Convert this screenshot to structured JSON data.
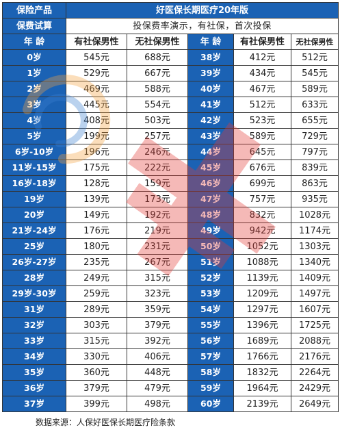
{
  "header": {
    "label_product": "保险产品",
    "product_name": "好医保长期医疗20年版",
    "label_trial": "保费试算",
    "trial_note": "投保费率演示，有社保，首次投保"
  },
  "columns": {
    "age": "年  龄",
    "with_ss_male": "有社保男性",
    "without_ss_male": "无社保男性",
    "age_right": "年  龄",
    "with_ss_male_right": "有社保男性",
    "without_ss_male_right": "无社保男性"
  },
  "rows": [
    {
      "age_left": "0岁",
      "with_left": "545元",
      "without_left": "688元",
      "age_right": "38岁",
      "with_right": "412元",
      "without_right": "512元"
    },
    {
      "age_left": "1岁",
      "with_left": "529元",
      "without_left": "667元",
      "age_right": "39岁",
      "with_right": "434元",
      "without_right": "545元"
    },
    {
      "age_left": "2岁",
      "with_left": "469元",
      "without_left": "588元",
      "age_right": "40岁",
      "with_right": "467元",
      "without_right": "589元"
    },
    {
      "age_left": "3岁",
      "with_left": "445元",
      "without_left": "554元",
      "age_right": "41岁",
      "with_right": "512元",
      "without_right": "633元"
    },
    {
      "age_left": "4岁",
      "with_left": "408元",
      "without_left": "503元",
      "age_right": "42岁",
      "with_right": "523元",
      "without_right": "655元"
    },
    {
      "age_left": "5岁",
      "with_left": "199元",
      "without_left": "257元",
      "age_right": "43岁",
      "with_right": "589元",
      "without_right": "729元"
    },
    {
      "age_left": "6岁-10岁",
      "with_left": "196元",
      "without_left": "246元",
      "age_right": "44岁",
      "with_right": "645元",
      "without_right": "797元"
    },
    {
      "age_left": "11岁-15岁",
      "with_left": "175元",
      "without_left": "222元",
      "age_right": "45岁",
      "with_right": "676元",
      "without_right": "839元"
    },
    {
      "age_left": "16岁-18岁",
      "with_left": "128元",
      "without_left": "159元",
      "age_right": "46岁",
      "with_right": "699元",
      "without_right": "863元"
    },
    {
      "age_left": "19岁",
      "with_left": "139元",
      "without_left": "173元",
      "age_right": "47岁",
      "with_right": "757元",
      "without_right": "935元"
    },
    {
      "age_left": "20岁",
      "with_left": "149元",
      "without_left": "192元",
      "age_right": "48岁",
      "with_right": "832元",
      "without_right": "1028元"
    },
    {
      "age_left": "21岁-24岁",
      "with_left": "176元",
      "without_left": "219元",
      "age_right": "49岁",
      "with_right": "942元",
      "without_right": "1174元"
    },
    {
      "age_left": "25岁",
      "with_left": "180元",
      "without_left": "231元",
      "age_right": "50岁",
      "with_right": "1052元",
      "without_right": "1303元"
    },
    {
      "age_left": "26岁-27岁",
      "with_left": "235元",
      "without_left": "267元",
      "age_right": "51岁",
      "with_right": "1088元",
      "without_right": "1340元"
    },
    {
      "age_left": "28岁",
      "with_left": "249元",
      "without_left": "315元",
      "age_right": "52岁",
      "with_right": "1139元",
      "without_right": "1409元"
    },
    {
      "age_left": "29岁-30岁",
      "with_left": "259元",
      "without_left": "323元",
      "age_right": "53岁",
      "with_right": "1209元",
      "without_right": "1497元"
    },
    {
      "age_left": "31岁",
      "with_left": "289元",
      "without_left": "359元",
      "age_right": "54岁",
      "with_right": "1297元",
      "without_right": "1607元"
    },
    {
      "age_left": "32岁",
      "with_left": "303元",
      "without_left": "379元",
      "age_right": "55岁",
      "with_right": "1396元",
      "without_right": "1725元"
    },
    {
      "age_left": "33岁",
      "with_left": "315元",
      "without_left": "392元",
      "age_right": "56岁",
      "with_right": "1689元",
      "without_right": "2088元"
    },
    {
      "age_left": "34岁",
      "with_left": "330元",
      "without_left": "406元",
      "age_right": "57岁",
      "with_right": "1766元",
      "without_right": "2176元"
    },
    {
      "age_left": "35岁",
      "with_left": "360元",
      "without_left": "448元",
      "age_right": "58岁",
      "with_right": "1832元",
      "without_right": "2264元"
    },
    {
      "age_left": "36岁",
      "with_left": "379元",
      "without_left": "479元",
      "age_right": "59岁",
      "with_right": "1964元",
      "without_right": "2429元"
    },
    {
      "age_left": "37岁",
      "with_left": "399元",
      "without_left": "498元",
      "age_right": "60岁",
      "with_right": "2139元",
      "without_right": "2649元"
    }
  ],
  "source_note": "数据来源：人保好医保长期医疗险条款",
  "colors": {
    "header_blue": "#1b62b4",
    "border": "#333333",
    "watermark_red": "#e53935",
    "watermark_orange": "#f4a340",
    "watermark_blue": "#3b7fd1"
  },
  "icons": {
    "watermark": "brand-watermark-logo"
  }
}
